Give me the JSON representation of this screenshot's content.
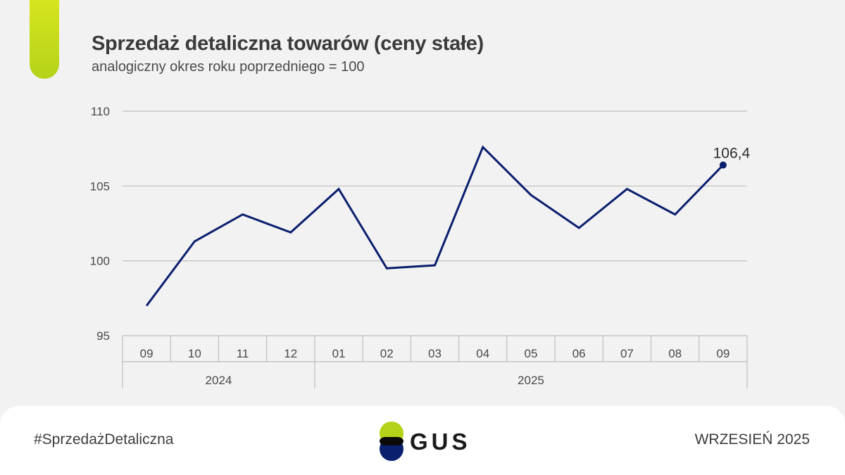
{
  "header": {
    "title": "Sprzedaż detaliczna towarów (ceny stałe)",
    "subtitle": "analogiczny okres roku poprzedniego = 100"
  },
  "chart_data": {
    "type": "line",
    "title": "Sprzedaż detaliczna towarów (ceny stałe)",
    "subtitle": "analogiczny okres roku poprzedniego = 100",
    "categories": [
      "09",
      "10",
      "11",
      "12",
      "01",
      "02",
      "03",
      "04",
      "05",
      "06",
      "07",
      "08",
      "09"
    ],
    "category_groups": [
      {
        "label": "2024",
        "count": 4
      },
      {
        "label": "2025",
        "count": 9
      }
    ],
    "series": [
      {
        "values": [
          97.0,
          101.3,
          103.1,
          101.9,
          104.8,
          99.5,
          99.7,
          107.6,
          104.4,
          102.2,
          104.8,
          103.1,
          106.4
        ]
      }
    ],
    "last_point_label": "106,4",
    "ylim": [
      95,
      110
    ],
    "yticks": [
      {
        "value": 95,
        "label": "95"
      },
      {
        "value": 100,
        "label": "100"
      },
      {
        "value": 105,
        "label": "105"
      },
      {
        "value": 110,
        "label": "110"
      }
    ],
    "grid": true,
    "xlabel": "",
    "ylabel": "",
    "colors": {
      "line": "#0a1f6e",
      "grid": "#bdbdbd",
      "axis_text": "#4a4a4a"
    }
  },
  "footer": {
    "hashtag": "#SprzedażDetaliczna",
    "logo_text": "GUS",
    "date": "WRZESIEŃ 2025"
  }
}
